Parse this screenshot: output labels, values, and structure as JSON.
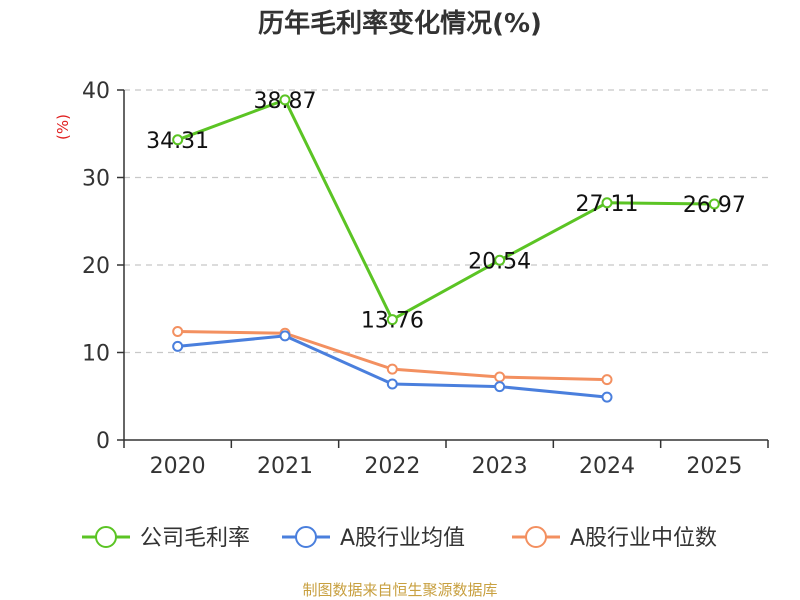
{
  "chart_data": {
    "type": "line",
    "title": "历年毛利率变化情况(%)",
    "ylabel": "(%)",
    "xlabel": "",
    "categories": [
      "2020",
      "2021",
      "2022",
      "2023",
      "2024",
      "2025"
    ],
    "ylim": [
      0,
      40
    ],
    "yticks": [
      0,
      10,
      20,
      30,
      40
    ],
    "grid": true,
    "legend_position": "bottom",
    "series": [
      {
        "name": "公司毛利率",
        "color": "#5bc424",
        "values": [
          34.31,
          38.87,
          13.76,
          20.54,
          27.11,
          26.97
        ],
        "labels": [
          "34.31",
          "38.87",
          "13.76",
          "20.54",
          "27.11",
          "26.97"
        ]
      },
      {
        "name": "A股行业均值",
        "color": "#4a7fdd",
        "values": [
          10.7,
          11.9,
          6.4,
          6.1,
          4.9,
          null
        ],
        "labels": null
      },
      {
        "name": "A股行业中位数",
        "color": "#f39060",
        "values": [
          12.4,
          12.2,
          8.1,
          7.2,
          6.9,
          null
        ],
        "labels": null
      }
    ]
  },
  "source": "制图数据来自恒生聚源数据库"
}
